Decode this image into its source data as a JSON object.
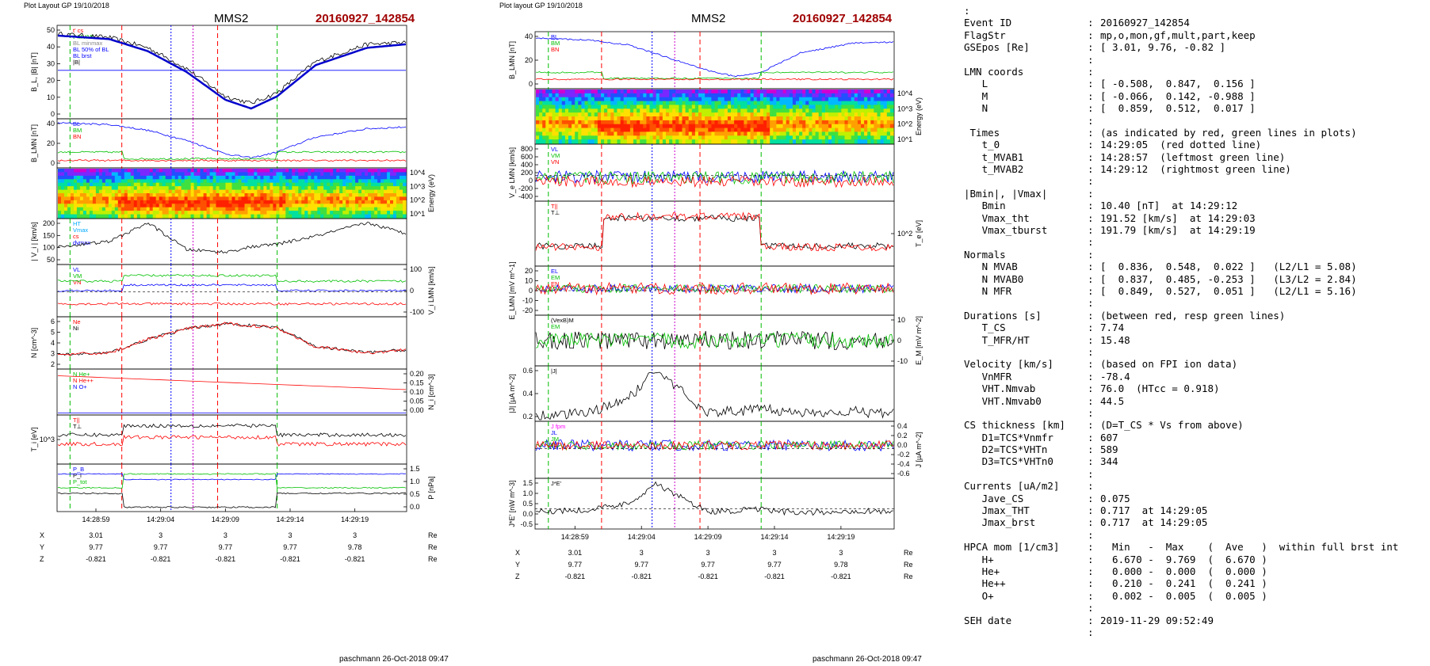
{
  "left_panel": {
    "header_left": "Plot Layout GP 19/10/2018",
    "spacecraft": "MMS2",
    "event": "20160927_142854",
    "footer": "paschmann 26-Oct-2018 09:47",
    "time_ticks": [
      "14:28:59",
      "14:29:04",
      "14:29:09",
      "14:29:14",
      "14:29:19"
    ],
    "ephem": [
      {
        "name": "X",
        "values": [
          "3.01",
          "3",
          "3",
          "3",
          "3"
        ],
        "unit": "Re"
      },
      {
        "name": "Y",
        "values": [
          "9.77",
          "9.77",
          "9.77",
          "9.77",
          "9.78"
        ],
        "unit": "Re"
      },
      {
        "name": "Z",
        "values": [
          "-0.821",
          "-0.821",
          "-0.821",
          "-0.821",
          "-0.821"
        ],
        "unit": "Re"
      }
    ],
    "panels": [
      {
        "id": "B",
        "ylabel": "B_L, |B| [nT]",
        "ticks": [
          "0",
          "10",
          "20",
          "30",
          "40",
          "50"
        ],
        "legend": [
          "t' cs",
          "t' MVAB",
          "BL minmax",
          "BL 50% of BL",
          "BL brst",
          "|B|"
        ]
      },
      {
        "id": "BLMN",
        "ylabel": "B_LMN [nT]",
        "ticks": [
          "0",
          "20",
          "40"
        ],
        "legend": [
          "BL",
          "BM",
          "BN"
        ]
      },
      {
        "id": "spec",
        "ylabel_right": "Energy (eV)",
        "ticks_right": [
          "10^1",
          "10^2",
          "10^3",
          "10^4"
        ]
      },
      {
        "id": "Vi",
        "ylabel": "| V_i | [km/s]",
        "ticks": [
          "50",
          "100",
          "150",
          "200"
        ],
        "legend": [
          "HT",
          "Vmax",
          "cs",
          "dvmax"
        ]
      },
      {
        "id": "ViLMN",
        "ylabel_right": "V_i LMN [km/s]",
        "ticks_right": [
          "-100",
          "0",
          "100"
        ],
        "legend": [
          "VL",
          "VM",
          "VN"
        ]
      },
      {
        "id": "N",
        "ylabel": "N [cm^-3]",
        "ticks": [
          "2",
          "3",
          "4",
          "5",
          "6"
        ],
        "legend": [
          "Ne",
          "Ni"
        ]
      },
      {
        "id": "NHe",
        "ylabel_right": "N_i [cm^-3]",
        "ticks_right": [
          "0.00",
          "0.05",
          "0.10",
          "0.15",
          "0.20"
        ],
        "legend": [
          "N  He+",
          "N  He++",
          "N  O+"
        ]
      },
      {
        "id": "Ti",
        "ylabel": "T_i [eV]",
        "ticks": [
          "10^3"
        ],
        "legend": [
          "T||",
          "T⊥"
        ]
      },
      {
        "id": "P",
        "ylabel_right": "P [nPa]",
        "ticks_right": [
          "0.0",
          "0.5",
          "1.0",
          "1.5"
        ],
        "legend": [
          "P_B",
          "P_i",
          "P_tot"
        ]
      }
    ]
  },
  "right_panel": {
    "header_left": "Plot layout GP 19/10/2018",
    "spacecraft": "MMS2",
    "event": "20160927_142854",
    "footer": "paschmann 26-Oct-2018 09:47",
    "time_ticks": [
      "14:28:59",
      "14:29:04",
      "14:29:09",
      "14:29:14",
      "14:29:19"
    ],
    "ephem": [
      {
        "name": "X",
        "values": [
          "3.01",
          "3",
          "3",
          "3",
          "3"
        ],
        "unit": "Re"
      },
      {
        "name": "Y",
        "values": [
          "9.77",
          "9.77",
          "9.77",
          "9.77",
          "9.78"
        ],
        "unit": "Re"
      },
      {
        "name": "Z",
        "values": [
          "-0.821",
          "-0.821",
          "-0.821",
          "-0.821",
          "-0.821"
        ],
        "unit": "Re"
      }
    ],
    "panels": [
      {
        "id": "BLMN",
        "ylabel": "B_LMN [nT]",
        "ticks": [
          "0",
          "20",
          "40"
        ],
        "legend": [
          "BL",
          "BM",
          "BN"
        ]
      },
      {
        "id": "spec",
        "ylabel_right": "Energy (eV)",
        "ticks_right": [
          "10^1",
          "10^2",
          "10^3",
          "10^4"
        ]
      },
      {
        "id": "Ve",
        "ylabel": "V_e LMN [km/s]",
        "ticks": [
          "-400",
          "-200",
          "0",
          "200",
          "400",
          "600",
          "800"
        ],
        "legend": [
          "VL",
          "VM",
          "VN"
        ]
      },
      {
        "id": "Te",
        "ylabel_right": "T_e [eV]",
        "ticks_right": [
          "10^2"
        ],
        "legend": [
          "T||",
          "T⊥"
        ]
      },
      {
        "id": "E",
        "ylabel": "E_LMN [mV m^-1]",
        "ticks": [
          "-20",
          "-10",
          "0",
          "10",
          "20"
        ],
        "legend": [
          "EL",
          "EM",
          "EN"
        ]
      },
      {
        "id": "EM",
        "ylabel_right": "E_M [mV m^-2]",
        "ticks_right": [
          "-10",
          "0",
          "10"
        ],
        "legend": [
          "(VexB)M",
          "EM"
        ]
      },
      {
        "id": "J",
        "ylabel": "|J| [µA m^-2]",
        "ticks": [
          "0.2",
          "0.4",
          "0.6"
        ],
        "legend": [
          "|J|"
        ]
      },
      {
        "id": "JLMN",
        "ylabel_right": "J [µA m^-2]",
        "ticks_right": [
          "-0.6",
          "-0.4",
          "-0.2",
          "0.0",
          "0.2",
          "0.4"
        ],
        "legend": [
          "J fpm",
          "JL",
          "JM",
          "JN"
        ]
      },
      {
        "id": "JE",
        "ylabel": "J*E' [nW m^-3]",
        "ticks": [
          "-0.5",
          "0.0",
          "0.5",
          "1.0",
          "1.5"
        ],
        "legend": [
          "J*E'"
        ]
      }
    ]
  },
  "info_lines": [
    {
      "text": ":"
    },
    {
      "key": "Event ID",
      "value": "20160927_142854"
    },
    {
      "key": "FlagStr",
      "value": "mp,o,mon,gf,mult,part,keep"
    },
    {
      "key": "GSEpos [Re]",
      "value": "[ 3.01, 9.76, -0.82 ]"
    },
    {
      "key": "",
      "value": ""
    },
    {
      "key": "LMN coords",
      "value": ""
    },
    {
      "key": "   L",
      "value": "[ -0.508,  0.847,  0.156 ]"
    },
    {
      "key": "   M",
      "value": "[ -0.066,  0.142, -0.988 ]"
    },
    {
      "key": "   N",
      "value": "[  0.859,  0.512,  0.017 ]"
    },
    {
      "key": "",
      "value": ""
    },
    {
      "key": " Times",
      "value": "(as indicated by red, green lines in plots)"
    },
    {
      "key": "   t_0",
      "value": "14:29:05  (red dotted line)"
    },
    {
      "key": "   t_MVAB1",
      "value": "14:28:57  (leftmost green line)"
    },
    {
      "key": "   t_MVAB2",
      "value": "14:29:12  (rightmost green line)"
    },
    {
      "key": "",
      "value": ""
    },
    {
      "key": "|Bmin|, |Vmax|",
      "value": ""
    },
    {
      "key": "   Bmin",
      "value": "10.40 [nT]  at 14:29:12"
    },
    {
      "key": "   Vmax_tht",
      "value": "191.52 [km/s]  at 14:29:03"
    },
    {
      "key": "   Vmax_tburst",
      "value": "191.79 [km/s]  at 14:29:19"
    },
    {
      "key": "",
      "value": ""
    },
    {
      "key": "Normals",
      "value": ""
    },
    {
      "key": "   N MVAB",
      "value": "[  0.836,  0.548,  0.022 ]   (L2/L1 = 5.08)"
    },
    {
      "key": "   N MVAB0",
      "value": "[  0.837,  0.485, -0.253 ]   (L3/L2 = 2.84)"
    },
    {
      "key": "   N MFR",
      "value": "[  0.849,  0.527,  0.051 ]   (L2/L1 = 5.16)"
    },
    {
      "key": "",
      "value": ""
    },
    {
      "key": "Durations [s]",
      "value": "(between red, resp green lines)"
    },
    {
      "key": "   T_CS",
      "value": "7.74"
    },
    {
      "key": "   T_MFR/HT",
      "value": "15.48"
    },
    {
      "key": "",
      "value": ""
    },
    {
      "key": "Velocity [km/s]",
      "value": "(based on FPI ion data)"
    },
    {
      "key": "   VnMFR",
      "value": "-78.4"
    },
    {
      "key": "   VHT.Nmvab",
      "value": "76.0  (HTcc = 0.918)"
    },
    {
      "key": "   VHT.Nmvab0",
      "value": "44.5"
    },
    {
      "key": "",
      "value": ""
    },
    {
      "key": "CS thickness [km]",
      "value": "(D=T_CS * Vs from above)"
    },
    {
      "key": "   D1=TCS*Vnmfr",
      "value": "607"
    },
    {
      "key": "   D2=TCS*VHTn",
      "value": "589"
    },
    {
      "key": "   D3=TCS*VHTn0",
      "value": "344"
    },
    {
      "key": "",
      "value": ""
    },
    {
      "key": "Currents [uA/m2]",
      "value": ""
    },
    {
      "key": "   Jave_CS",
      "value": "0.075"
    },
    {
      "key": "   Jmax_THT",
      "value": "0.717  at 14:29:05"
    },
    {
      "key": "   Jmax_brst",
      "value": "0.717  at 14:29:05"
    },
    {
      "key": "",
      "value": ""
    },
    {
      "key": "HPCA mom [1/cm3]",
      "value": "  Min   -  Max    (  Ave   )  within full brst int"
    },
    {
      "key": "   H+",
      "value": "  6.670 -  9.769  (  6.670 )"
    },
    {
      "key": "   He+",
      "value": "  0.000 -  0.000  (  0.000 )"
    },
    {
      "key": "   He++",
      "value": "  0.210 -  0.241  (  0.241 )"
    },
    {
      "key": "   O+",
      "value": "  0.002 -  0.005  (  0.005 )"
    },
    {
      "key": "",
      "value": ""
    },
    {
      "key": "SEH date",
      "value": "2019-11-29 09:52:49"
    },
    {
      "key": "",
      "value": ""
    }
  ],
  "chart_data": [
    {
      "type": "line",
      "title": "MMS2",
      "event": "20160927_142854",
      "x_axis": "time",
      "x_ticks": [
        "14:28:59",
        "14:29:04",
        "14:29:09",
        "14:29:14",
        "14:29:19"
      ],
      "series": [
        {
          "name": "BL brst",
          "x": [
            "14:28:56",
            "14:29:00",
            "14:29:03",
            "14:29:06",
            "14:29:09",
            "14:29:11",
            "14:29:13",
            "14:29:16",
            "14:29:20",
            "14:29:23"
          ],
          "values": [
            47,
            45,
            38,
            26,
            10,
            5,
            12,
            30,
            40,
            42
          ]
        },
        {
          "name": "|B|",
          "x": [
            "14:28:56",
            "14:29:00",
            "14:29:03",
            "14:29:06",
            "14:29:09",
            "14:29:11",
            "14:29:13",
            "14:29:16",
            "14:29:20",
            "14:29:23"
          ],
          "values": [
            48,
            46,
            40,
            28,
            12,
            8,
            14,
            32,
            42,
            43
          ]
        },
        {
          "name": "Ne",
          "x": [
            "14:28:56",
            "14:29:00",
            "14:29:03",
            "14:29:06",
            "14:29:09",
            "14:29:11",
            "14:29:13",
            "14:29:16",
            "14:29:20",
            "14:29:23"
          ],
          "values": [
            3.0,
            3.2,
            4.5,
            5.5,
            6.0,
            5.8,
            5.6,
            3.8,
            3.2,
            3.5
          ]
        },
        {
          "name": "|Vi|",
          "x": [
            "14:28:56",
            "14:29:00",
            "14:29:03",
            "14:29:06",
            "14:29:09",
            "14:29:11",
            "14:29:13",
            "14:29:16",
            "14:29:20",
            "14:29:23"
          ],
          "values": [
            100,
            120,
            190,
            90,
            80,
            100,
            110,
            140,
            190,
            150
          ]
        }
      ],
      "reference_lines": [
        {
          "name": "BL 50% of BL",
          "value": 27
        },
        {
          "name": "t_MVAB1",
          "time": "14:28:57"
        },
        {
          "name": "t_0",
          "time": "14:29:05"
        },
        {
          "name": "t_MVAB2",
          "time": "14:29:12"
        }
      ]
    },
    {
      "type": "line",
      "title": "MMS2",
      "event": "20160927_142854",
      "x_axis": "time",
      "x_ticks": [
        "14:28:59",
        "14:29:04",
        "14:29:09",
        "14:29:14",
        "14:29:19"
      ],
      "series": [
        {
          "name": "BL",
          "x": [
            "14:28:56",
            "14:29:00",
            "14:29:03",
            "14:29:06",
            "14:29:09",
            "14:29:11",
            "14:29:13",
            "14:29:16",
            "14:29:20",
            "14:29:23"
          ],
          "values": [
            45,
            43,
            38,
            25,
            12,
            6,
            10,
            30,
            40,
            41
          ]
        },
        {
          "name": "|J|",
          "x": [
            "14:28:56",
            "14:29:00",
            "14:29:03",
            "14:29:05",
            "14:29:09",
            "14:29:13",
            "14:29:16",
            "14:29:20",
            "14:29:23"
          ],
          "values": [
            0.05,
            0.1,
            0.3,
            0.72,
            0.1,
            0.15,
            0.1,
            0.12,
            0.08
          ]
        },
        {
          "name": "J*E'",
          "x": [
            "14:28:56",
            "14:29:00",
            "14:29:03",
            "14:29:05",
            "14:29:09",
            "14:29:13",
            "14:29:16",
            "14:29:20",
            "14:29:23"
          ],
          "values": [
            0.0,
            0.1,
            0.4,
            1.4,
            0.0,
            0.1,
            -0.1,
            0.05,
            0.0
          ]
        }
      ]
    }
  ]
}
